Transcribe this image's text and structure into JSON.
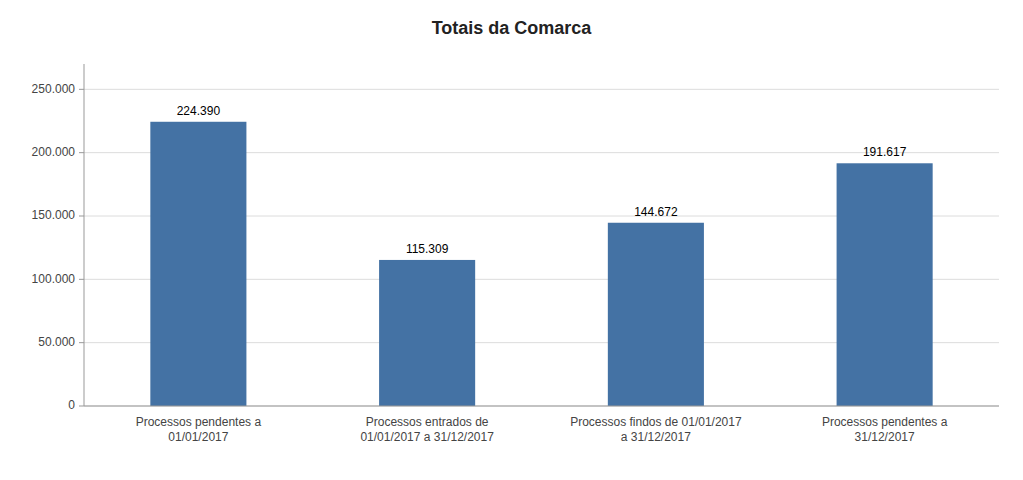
{
  "chart_data": {
    "type": "bar",
    "title": "Totais da Comarca",
    "categories": [
      "Processos pendentes a\n01/01/2017",
      "Processos entrados de\n01/01/2017 a 31/12/2017",
      "Processos findos de 01/01/2017\na 31/12/2017",
      "Processos pendentes a\n31/12/2017"
    ],
    "values": [
      224390,
      115309,
      144672,
      191617
    ],
    "value_labels": [
      "224.390",
      "115.309",
      "144.672",
      "191.617"
    ],
    "color": "#4472a4",
    "ylim": [
      0,
      270000
    ],
    "yticks": [
      0,
      {
        "value": 50000,
        "label": "50.000"
      },
      {
        "value": 100000,
        "label": "100.000"
      },
      {
        "value": 150000,
        "label": "150.000"
      },
      {
        "value": 200000,
        "label": "200.000"
      },
      {
        "value": 250000,
        "label": "250.000"
      }
    ],
    "grid": true,
    "data_labels": true
  }
}
